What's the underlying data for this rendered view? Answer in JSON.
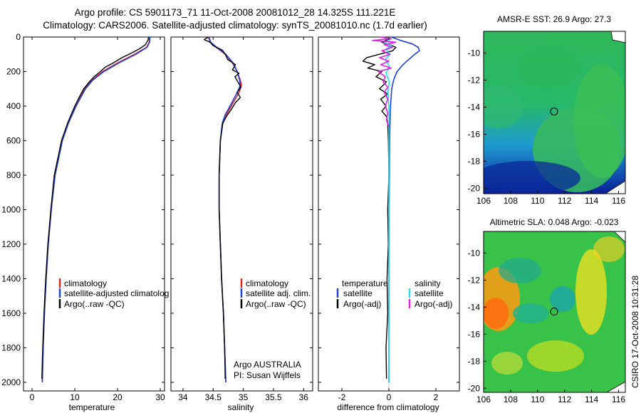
{
  "header": {
    "line1": "Argo profile: CS 5901173_71 11-Oct-2008 20081012_28 14.325S 111.221E",
    "line2": "Climatology: CARS2006. Satellite-adjusted climatology: synTS_20081010.nc (1.7d earlier)"
  },
  "side_stamp": "CSIRO 17-Oct-2008 10:31:28",
  "colors": {
    "climatology": "#e8231f",
    "satellite": "#1f3fe0",
    "argo": "#000000",
    "sal_satellite": "#22e0e8",
    "sal_argo": "#e020e0"
  },
  "chart_data": [
    {
      "id": "temperature",
      "type": "line",
      "xlabel": "temperature",
      "ylabel": "",
      "xlim": [
        -2,
        31
      ],
      "ylim": [
        2050,
        0
      ],
      "xticks": [
        0,
        10,
        20,
        30
      ],
      "xticklabels": [
        "0",
        "10",
        "20",
        "30"
      ],
      "yticks": [
        0,
        200,
        400,
        600,
        800,
        1000,
        1200,
        1400,
        1600,
        1800,
        2000
      ],
      "yticklabels": [
        "0",
        "200",
        "400",
        "600",
        "800",
        "1000",
        "1200",
        "1400",
        "1600",
        "1800",
        "2000"
      ],
      "legend": {
        "position": "bottom-right",
        "entries": [
          "climatology",
          "satellite-adjusted climatolog",
          "Argo(..raw -QC)"
        ]
      },
      "series": [
        {
          "name": "climatology",
          "color": "#e8231f",
          "depth": [
            0,
            30,
            60,
            100,
            150,
            200,
            250,
            300,
            400,
            500,
            600,
            800,
            1000,
            1200,
            1400,
            1600,
            1800,
            2000
          ],
          "values": [
            27.5,
            27.4,
            26.8,
            24,
            20,
            16.5,
            14,
            12.3,
            10.2,
            8.4,
            7,
            5.3,
            4.5,
            3.8,
            3.3,
            2.9,
            2.6,
            2.4
          ]
        },
        {
          "name": "satellite-adjusted climatology",
          "color": "#1f3fe0",
          "depth": [
            0,
            30,
            60,
            100,
            150,
            200,
            250,
            300,
            400,
            500,
            600,
            800,
            1000,
            1200,
            1400,
            1600,
            1800,
            2000
          ],
          "values": [
            27.6,
            27.5,
            26.9,
            24.3,
            20.3,
            16.8,
            14.2,
            12.5,
            10.3,
            8.5,
            7.1,
            5.4,
            4.5,
            3.8,
            3.3,
            2.9,
            2.6,
            2.4
          ]
        },
        {
          "name": "Argo(..raw -QC)",
          "color": "#000000",
          "depth": [
            0,
            20,
            45,
            70,
            95,
            120,
            150,
            175,
            200,
            230,
            260,
            300,
            350,
            400,
            500,
            600,
            800,
            1000,
            1200,
            1400,
            1600,
            1800,
            1980
          ],
          "values": [
            27.3,
            27.1,
            26.5,
            25,
            23.1,
            21,
            19,
            17.1,
            16,
            14.5,
            13.4,
            12.1,
            11,
            10,
            8.3,
            6.9,
            5.2,
            4.4,
            3.7,
            3.2,
            2.8,
            2.5,
            2.3
          ]
        }
      ],
      "annotations": []
    },
    {
      "id": "salinity",
      "type": "line",
      "xlabel": "salinity",
      "ylabel": "",
      "xlim": [
        33.8,
        36.15
      ],
      "ylim": [
        2050,
        0
      ],
      "xticks": [
        34,
        34.5,
        35,
        35.5,
        36
      ],
      "xticklabels": [
        "34",
        "34.5",
        "35",
        "35.5",
        "36"
      ],
      "legend": {
        "position": "bottom-right",
        "entries": [
          "climatology",
          "satellite adj. clim.",
          "Argo(..raw -QC)"
        ]
      },
      "annotations": [
        "Argo AUSTRALIA",
        "PI: Susan Wijffels"
      ],
      "series": [
        {
          "name": "climatology",
          "color": "#e8231f",
          "depth": [
            0,
            30,
            60,
            100,
            150,
            200,
            250,
            280,
            320,
            400,
            450,
            500,
            600,
            800,
            1000,
            1200,
            1400,
            1600,
            1800,
            2000
          ],
          "values": [
            34.42,
            34.45,
            34.55,
            34.7,
            34.82,
            34.9,
            34.95,
            34.97,
            34.93,
            34.8,
            34.72,
            34.66,
            34.62,
            34.6,
            34.6,
            34.62,
            34.64,
            34.67,
            34.69,
            34.71
          ]
        },
        {
          "name": "satellite adj. clim.",
          "color": "#1f3fe0",
          "depth": [
            0,
            30,
            60,
            100,
            150,
            200,
            250,
            280,
            320,
            400,
            450,
            500,
            600,
            800,
            1000,
            1200,
            1400,
            1600,
            1800,
            2000
          ],
          "values": [
            34.43,
            34.46,
            34.56,
            34.71,
            34.83,
            34.9,
            34.94,
            34.95,
            34.9,
            34.78,
            34.7,
            34.65,
            34.62,
            34.6,
            34.6,
            34.62,
            34.64,
            34.67,
            34.69,
            34.71
          ]
        },
        {
          "name": "Argo(..raw -QC)",
          "color": "#000000",
          "depth": [
            0,
            15,
            30,
            50,
            75,
            100,
            130,
            160,
            190,
            210,
            230,
            260,
            290,
            320,
            350,
            380,
            420,
            460,
            500,
            600,
            800,
            1000,
            1200,
            1400,
            1600,
            1800,
            1980
          ],
          "values": [
            34.42,
            34.35,
            34.45,
            34.5,
            34.65,
            34.7,
            34.74,
            34.87,
            34.82,
            34.93,
            34.86,
            34.91,
            34.96,
            34.9,
            34.95,
            34.87,
            34.8,
            34.72,
            34.66,
            34.62,
            34.6,
            34.6,
            34.62,
            34.64,
            34.67,
            34.69,
            34.7
          ]
        }
      ]
    },
    {
      "id": "difference",
      "type": "line",
      "xlabel": "difference from climatology",
      "ylabel": "",
      "xlim": [
        -3,
        3
      ],
      "ylim": [
        2050,
        0
      ],
      "xticks": [
        -2,
        0,
        2
      ],
      "xticklabels": [
        "-2",
        "0",
        "2"
      ],
      "legend": {
        "position": "bottom",
        "groups": [
          {
            "title": "temperature",
            "entries": [
              "satellite",
              "Argo(-adj)"
            ]
          },
          {
            "title": "salinity",
            "entries": [
              "satellite",
              "Argo(-adj)"
            ]
          }
        ]
      },
      "annotations": [],
      "series": [
        {
          "name": "temperature satellite",
          "color": "#1f3fe0",
          "depth": [
            0,
            20,
            40,
            60,
            80,
            100,
            130,
            160,
            200,
            250,
            300,
            400,
            500,
            600,
            800,
            1000,
            1500,
            2000
          ],
          "values": [
            0.1,
            0.5,
            1.0,
            1.25,
            1.3,
            1.1,
            0.85,
            0.6,
            0.35,
            0.2,
            0.12,
            0.07,
            0.05,
            0.03,
            0.02,
            0.01,
            0.0,
            0.0
          ]
        },
        {
          "name": "temperature Argo(-adj)",
          "color": "#000000",
          "depth": [
            0,
            15,
            30,
            45,
            60,
            80,
            100,
            120,
            140,
            160,
            180,
            200,
            230,
            260,
            300,
            330,
            360,
            400,
            430,
            460,
            500,
            600,
            800,
            1000,
            1200,
            1400,
            1600,
            1800,
            1980
          ],
          "values": [
            -0.2,
            -0.05,
            -0.3,
            0.05,
            0.3,
            0.15,
            -0.4,
            -0.95,
            -1.1,
            -0.6,
            -0.9,
            -0.3,
            -0.55,
            -0.1,
            -0.4,
            -0.05,
            -0.35,
            -0.12,
            -0.3,
            -0.1,
            -0.05,
            -0.02,
            0.0,
            -0.05,
            -0.02,
            -0.08,
            -0.05,
            -0.12,
            -0.1
          ]
        },
        {
          "name": "salinity satellite",
          "color": "#22e0e8",
          "depth": [
            0,
            15,
            30,
            50,
            70,
            100,
            130,
            170,
            210,
            260,
            320,
            400,
            500,
            600,
            800,
            1000,
            1200,
            1400,
            1600,
            1800,
            2000
          ],
          "values": [
            -0.25,
            0.05,
            -0.2,
            0.1,
            -0.12,
            0.05,
            -0.15,
            0.02,
            -0.12,
            0.02,
            -0.05,
            0.0,
            0.0,
            0.0,
            0.0,
            0.0,
            0.0,
            0.0,
            0.0,
            0.0,
            0.0
          ]
        },
        {
          "name": "salinity Argo(-adj)",
          "color": "#e020e0",
          "depth": [
            0,
            10,
            20,
            30,
            45,
            60,
            80,
            100,
            120,
            140,
            160,
            180,
            200,
            230,
            260,
            290,
            320,
            360,
            400,
            440,
            480,
            520
          ],
          "values": [
            -0.4,
            0.1,
            -0.7,
            0.3,
            -0.2,
            0.15,
            -0.3,
            0.05,
            -0.4,
            0.0,
            -0.35,
            0.1,
            -0.45,
            -0.15,
            -0.25,
            -0.05,
            -0.2,
            -0.05,
            -0.15,
            -0.05,
            -0.1,
            0.0
          ]
        }
      ]
    },
    {
      "id": "sst_map",
      "type": "heatmap",
      "title": "AMSR-E SST: 26.9  Argo: 27.3",
      "xlim": [
        106,
        116.5
      ],
      "ylim": [
        -20.4,
        -8.4
      ],
      "xticks": [
        106,
        108,
        110,
        112,
        114,
        116
      ],
      "xticklabels": [
        "106",
        "108",
        "110",
        "112",
        "114",
        "116"
      ],
      "yticks": [
        -10,
        -12,
        -14,
        -16,
        -18,
        -20
      ],
      "yticklabels": [
        "-10",
        "-12",
        "-14",
        "-16",
        "-18",
        "-20"
      ],
      "marker": {
        "lon": 111.221,
        "lat": -14.325
      },
      "legend": "none",
      "annotations": []
    },
    {
      "id": "sla_map",
      "type": "heatmap",
      "title": "Altimetric SLA: 0.048  Argo: -0.023",
      "xlim": [
        106,
        116.5
      ],
      "ylim": [
        -20.3,
        -8.4
      ],
      "xticks": [
        106,
        108,
        110,
        112,
        114,
        116
      ],
      "xticklabels": [
        "106",
        "108",
        "110",
        "112",
        "114",
        "116"
      ],
      "yticks": [
        -10,
        -12,
        -14,
        -16,
        -18,
        -20
      ],
      "yticklabels": [
        "-10",
        "-12",
        "-14",
        "-16",
        "-18",
        "-20"
      ],
      "marker": {
        "lon": 111.221,
        "lat": -14.325
      },
      "legend": "none",
      "annotations": []
    }
  ]
}
